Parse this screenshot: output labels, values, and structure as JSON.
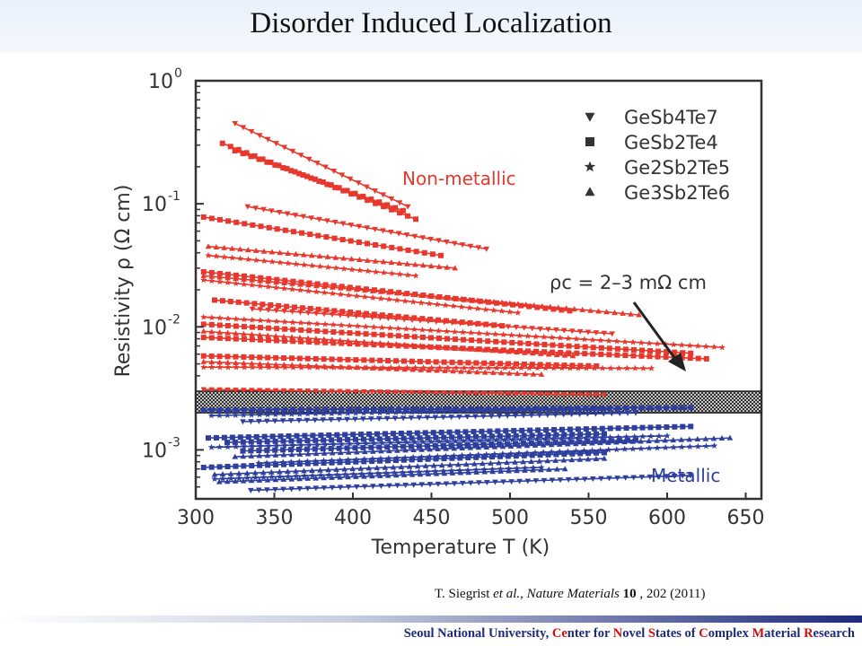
{
  "slide_title": "Disorder Induced Localization",
  "citation": {
    "authors": "T. Siegrist ",
    "etal": "et al.",
    "journal": "Nature Materials",
    "volume": "10",
    "rest": " , 202 (2011)"
  },
  "footer": {
    "segments": [
      {
        "text": "Seoul National University, ",
        "hl": false
      },
      {
        "text": "Ce",
        "hl": true
      },
      {
        "text": "nter for ",
        "hl": false
      },
      {
        "text": "N",
        "hl": true
      },
      {
        "text": "ovel ",
        "hl": false
      },
      {
        "text": "S",
        "hl": true
      },
      {
        "text": "tates of ",
        "hl": false
      },
      {
        "text": "C",
        "hl": true
      },
      {
        "text": "omplex ",
        "hl": false
      },
      {
        "text": "M",
        "hl": true
      },
      {
        "text": "aterial ",
        "hl": false
      },
      {
        "text": "R",
        "hl": true
      },
      {
        "text": "esearch",
        "hl": false
      }
    ]
  },
  "chart_data": {
    "type": "scatter",
    "xlabel": "Temperature T (K)",
    "ylabel": "Resistivity ρ (Ω cm)",
    "xlim": [
      300,
      660
    ],
    "ylim": [
      0.0004,
      1.0
    ],
    "yscale": "log",
    "x_ticks": [
      300,
      350,
      400,
      450,
      500,
      550,
      600,
      650
    ],
    "y_ticks": [
      {
        "value": 0.001,
        "label": "10",
        "exp": "-3"
      },
      {
        "value": 0.01,
        "label": "10",
        "exp": "-2"
      },
      {
        "value": 0.1,
        "label": "10",
        "exp": "-1"
      },
      {
        "value": 1,
        "label": "10",
        "exp": "0"
      }
    ],
    "legend": [
      {
        "marker": "triangle-down",
        "label": "GeSb4Te7"
      },
      {
        "marker": "square",
        "label": "GeSb2Te4"
      },
      {
        "marker": "star",
        "label": "Ge2Sb2Te5"
      },
      {
        "marker": "triangle-up",
        "label": "Ge3Sb2Te6"
      }
    ],
    "annotations": {
      "nonmetallic": "Non-metallic",
      "metallic": "Metallic",
      "rho_c": "ρc = 2–3 mΩ cm",
      "band_ylim": [
        0.002,
        0.003
      ]
    },
    "colors": {
      "nonmetallic": "#e8382e",
      "metallic": "#2e3f9e",
      "band": "#222222"
    },
    "series": [
      {
        "group": "nonmetallic",
        "marker": "triangle-down",
        "x": [
          325,
          435
        ],
        "y": [
          0.45,
          0.095
        ]
      },
      {
        "group": "nonmetallic",
        "marker": "square",
        "x": [
          317,
          440
        ],
        "y": [
          0.31,
          0.075
        ]
      },
      {
        "group": "nonmetallic",
        "marker": "square",
        "x": [
          325,
          432
        ],
        "y": [
          0.27,
          0.088
        ]
      },
      {
        "group": "nonmetallic",
        "marker": "triangle-down",
        "x": [
          333,
          485
        ],
        "y": [
          0.095,
          0.043
        ]
      },
      {
        "group": "nonmetallic",
        "marker": "square",
        "x": [
          305,
          456
        ],
        "y": [
          0.078,
          0.038
        ]
      },
      {
        "group": "nonmetallic",
        "marker": "triangle-up",
        "x": [
          308,
          465
        ],
        "y": [
          0.045,
          0.03
        ]
      },
      {
        "group": "nonmetallic",
        "marker": "star",
        "x": [
          308,
          440
        ],
        "y": [
          0.038,
          0.026
        ]
      },
      {
        "group": "nonmetallic",
        "marker": "square",
        "x": [
          305,
          538
        ],
        "y": [
          0.028,
          0.0135
        ]
      },
      {
        "group": "nonmetallic",
        "marker": "triangle-up",
        "x": [
          305,
          582
        ],
        "y": [
          0.026,
          0.0125
        ]
      },
      {
        "group": "nonmetallic",
        "marker": "star",
        "x": [
          305,
          505
        ],
        "y": [
          0.024,
          0.013
        ]
      },
      {
        "group": "nonmetallic",
        "marker": "square",
        "x": [
          312,
          495
        ],
        "y": [
          0.0165,
          0.0102
        ]
      },
      {
        "group": "nonmetallic",
        "marker": "triangle-down",
        "x": [
          336,
          565
        ],
        "y": [
          0.014,
          0.0088
        ]
      },
      {
        "group": "nonmetallic",
        "marker": "star",
        "x": [
          305,
          635
        ],
        "y": [
          0.012,
          0.0068
        ]
      },
      {
        "group": "nonmetallic",
        "marker": "square",
        "x": [
          305,
          615
        ],
        "y": [
          0.0105,
          0.0061
        ]
      },
      {
        "group": "nonmetallic",
        "marker": "triangle-up",
        "x": [
          305,
          540
        ],
        "y": [
          0.0092,
          0.0058
        ]
      },
      {
        "group": "nonmetallic",
        "marker": "square",
        "x": [
          305,
          625
        ],
        "y": [
          0.0082,
          0.0055
        ]
      },
      {
        "group": "nonmetallic",
        "marker": "square",
        "x": [
          305,
          555
        ],
        "y": [
          0.0058,
          0.0048
        ]
      },
      {
        "group": "nonmetallic",
        "marker": "triangle-up",
        "x": [
          305,
          520
        ],
        "y": [
          0.0052,
          0.0041
        ]
      },
      {
        "group": "nonmetallic",
        "marker": "star",
        "x": [
          305,
          590
        ],
        "y": [
          0.0047,
          0.0046
        ]
      },
      {
        "group": "nonmetallic",
        "marker": "triangle-down",
        "x": [
          305,
          560
        ],
        "y": [
          0.0031,
          0.0028
        ]
      },
      {
        "group": "metallic",
        "marker": "square",
        "x": [
          305,
          615
        ],
        "y": [
          0.0021,
          0.0022
        ]
      },
      {
        "group": "metallic",
        "marker": "star",
        "x": [
          310,
          560
        ],
        "y": [
          0.0019,
          0.00215
        ]
      },
      {
        "group": "metallic",
        "marker": "triangle-down",
        "x": [
          330,
          580
        ],
        "y": [
          0.0017,
          0.002
        ]
      },
      {
        "group": "metallic",
        "marker": "square",
        "x": [
          308,
          615
        ],
        "y": [
          0.00125,
          0.00155
        ]
      },
      {
        "group": "metallic",
        "marker": "square",
        "x": [
          320,
          560
        ],
        "y": [
          0.00115,
          0.00135
        ]
      },
      {
        "group": "metallic",
        "marker": "star",
        "x": [
          310,
          600
        ],
        "y": [
          0.00105,
          0.0013
        ]
      },
      {
        "group": "metallic",
        "marker": "square",
        "x": [
          330,
          580
        ],
        "y": [
          0.00098,
          0.0012
        ]
      },
      {
        "group": "metallic",
        "marker": "triangle-up",
        "x": [
          325,
          640
        ],
        "y": [
          0.00088,
          0.00125
        ]
      },
      {
        "group": "metallic",
        "marker": "star",
        "x": [
          340,
          630
        ],
        "y": [
          0.00078,
          0.00108
        ]
      },
      {
        "group": "metallic",
        "marker": "square",
        "x": [
          305,
          560
        ],
        "y": [
          0.00072,
          0.00095
        ]
      },
      {
        "group": "metallic",
        "marker": "triangle-up",
        "x": [
          312,
          560
        ],
        "y": [
          0.00063,
          0.00085
        ]
      },
      {
        "group": "metallic",
        "marker": "star",
        "x": [
          312,
          520
        ],
        "y": [
          0.00058,
          0.00072
        ]
      },
      {
        "group": "metallic",
        "marker": "triangle-up",
        "x": [
          315,
          535
        ],
        "y": [
          0.00055,
          0.0007
        ]
      },
      {
        "group": "metallic",
        "marker": "triangle-down",
        "x": [
          335,
          615
        ],
        "y": [
          0.00047,
          0.00062
        ]
      }
    ]
  }
}
